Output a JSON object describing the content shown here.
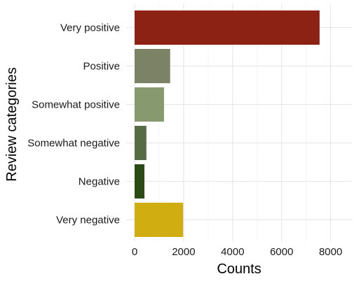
{
  "chart_data": {
    "type": "bar",
    "orientation": "horizontal",
    "categories": [
      "Very positive",
      "Positive",
      "Somewhat positive",
      "Somewhat negative",
      "Negative",
      "Very negative"
    ],
    "values": [
      7550,
      1450,
      1200,
      480,
      400,
      1980
    ],
    "colors": [
      "#8b2213",
      "#7b8266",
      "#87996f",
      "#566c45",
      "#2b4b16",
      "#d0ad10"
    ],
    "xlabel": "Counts",
    "ylabel": "Review categories",
    "xlim": [
      0,
      8900
    ],
    "x_ticks": [
      0,
      2000,
      4000,
      6000,
      8000
    ],
    "grid": true,
    "legend": "none"
  }
}
